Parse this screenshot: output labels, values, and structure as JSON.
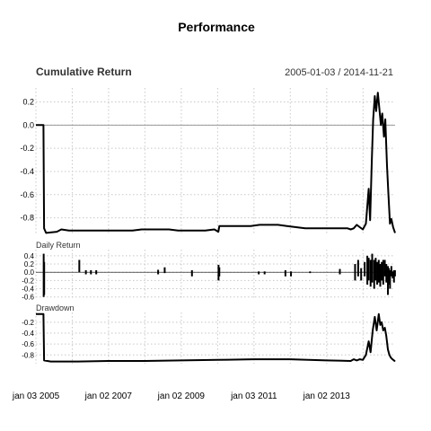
{
  "chart_data": {
    "type": "line",
    "title": "Performance",
    "date_range": "2005-01-03 / 2014-11-21",
    "x_ticks": [
      "jan 03 2005",
      "jan 02 2007",
      "jan 02 2009",
      "jan 03 2011",
      "jan 02 2013"
    ],
    "x_tick_dates": [
      "2005-01-03",
      "2007-01-02",
      "2009-01-02",
      "2011-01-03",
      "2013-01-02"
    ],
    "x_start": "2005-01-03",
    "x_end": "2014-11-21",
    "grid": true,
    "panels": [
      {
        "name": "Cumulative Return",
        "type": "line",
        "ylim": [
          -0.95,
          0.32
        ],
        "y_ticks": [
          "0.2",
          "0.0",
          "-0.2",
          "-0.4",
          "-0.6",
          "-0.8"
        ],
        "y_tick_values": [
          0.2,
          0.0,
          -0.2,
          -0.4,
          -0.6,
          -0.8
        ],
        "reference_line": 0.0,
        "x": [
          "2005-01-03",
          "2005-03-20",
          "2005-03-26",
          "2005-04-15",
          "2005-08-01",
          "2005-09-15",
          "2005-12-01",
          "2006-03-01",
          "2006-06-01",
          "2006-09-01",
          "2006-12-01",
          "2007-03-01",
          "2007-06-01",
          "2007-09-01",
          "2007-12-01",
          "2008-03-01",
          "2008-06-01",
          "2008-09-01",
          "2008-12-01",
          "2009-03-01",
          "2009-06-01",
          "2009-09-01",
          "2009-12-01",
          "2010-01-10",
          "2010-01-20",
          "2010-03-01",
          "2010-06-01",
          "2010-09-01",
          "2010-12-01",
          "2011-03-01",
          "2011-06-01",
          "2011-09-01",
          "2011-12-01",
          "2012-03-01",
          "2012-06-01",
          "2012-09-01",
          "2012-12-01",
          "2013-03-01",
          "2013-06-01",
          "2013-08-01",
          "2013-09-01",
          "2013-10-01",
          "2013-11-01",
          "2013-12-01",
          "2014-01-01",
          "2014-02-01",
          "2014-03-01",
          "2014-03-15",
          "2014-04-01",
          "2014-04-15",
          "2014-05-01",
          "2014-05-15",
          "2014-06-01",
          "2014-06-15",
          "2014-07-01",
          "2014-07-15",
          "2014-08-01",
          "2014-08-15",
          "2014-09-01",
          "2014-09-15",
          "2014-10-01",
          "2014-10-15",
          "2014-11-01",
          "2014-11-21"
        ],
        "values": [
          0.0,
          0.0,
          -0.89,
          -0.93,
          -0.92,
          -0.9,
          -0.91,
          -0.91,
          -0.91,
          -0.91,
          -0.91,
          -0.91,
          -0.91,
          -0.91,
          -0.9,
          -0.9,
          -0.9,
          -0.9,
          -0.91,
          -0.91,
          -0.91,
          -0.91,
          -0.9,
          -0.92,
          -0.87,
          -0.87,
          -0.87,
          -0.87,
          -0.87,
          -0.86,
          -0.86,
          -0.86,
          -0.87,
          -0.88,
          -0.89,
          -0.89,
          -0.89,
          -0.89,
          -0.89,
          -0.89,
          -0.9,
          -0.89,
          -0.86,
          -0.88,
          -0.9,
          -0.85,
          -0.55,
          -0.82,
          -0.3,
          0.05,
          0.25,
          0.12,
          0.28,
          0.15,
          0.0,
          0.1,
          -0.1,
          0.05,
          -0.35,
          -0.6,
          -0.85,
          -0.81,
          -0.88,
          -0.93
        ]
      },
      {
        "name": "Daily Return",
        "type": "bar",
        "ylim": [
          -0.65,
          0.55
        ],
        "y_ticks": [
          "0.4",
          "0.2",
          "0.0",
          "-0.2",
          "-0.4",
          "-0.6"
        ],
        "y_tick_values": [
          0.4,
          0.2,
          0.0,
          -0.2,
          -0.4,
          -0.6
        ],
        "spikes": [
          {
            "x": "2005-03-22",
            "lo": -0.6,
            "hi": 0.45
          },
          {
            "x": "2005-03-27",
            "lo": -0.55,
            "hi": 0.25
          },
          {
            "x": "2006-03-15",
            "lo": 0.0,
            "hi": 0.3
          },
          {
            "x": "2006-05-20",
            "lo": -0.05,
            "hi": 0.05
          },
          {
            "x": "2006-07-10",
            "lo": -0.05,
            "hi": 0.05
          },
          {
            "x": "2006-09-01",
            "lo": -0.05,
            "hi": 0.05
          },
          {
            "x": "2008-05-15",
            "lo": -0.05,
            "hi": 0.06
          },
          {
            "x": "2008-07-20",
            "lo": -0.02,
            "hi": 0.12
          },
          {
            "x": "2009-04-20",
            "lo": -0.1,
            "hi": 0.05
          },
          {
            "x": "2010-01-12",
            "lo": -0.2,
            "hi": 0.18
          },
          {
            "x": "2010-01-20",
            "lo": -0.1,
            "hi": 0.12
          },
          {
            "x": "2011-02-20",
            "lo": -0.05,
            "hi": 0.02
          },
          {
            "x": "2011-04-20",
            "lo": -0.05,
            "hi": 0.02
          },
          {
            "x": "2011-11-15",
            "lo": -0.1,
            "hi": 0.05
          },
          {
            "x": "2012-01-10",
            "lo": -0.1,
            "hi": 0.02
          },
          {
            "x": "2012-07-20",
            "lo": -0.02,
            "hi": 0.02
          },
          {
            "x": "2013-05-15",
            "lo": -0.05,
            "hi": 0.08
          },
          {
            "x": "2013-10-15",
            "lo": -0.2,
            "hi": 0.2
          },
          {
            "x": "2013-11-15",
            "lo": -0.1,
            "hi": 0.3
          },
          {
            "x": "2013-12-15",
            "lo": -0.2,
            "hi": 0.1
          },
          {
            "x": "2014-01-20",
            "lo": -0.1,
            "hi": 0.25
          },
          {
            "x": "2014-02-15",
            "lo": -0.3,
            "hi": 0.4
          },
          {
            "x": "2014-03-01",
            "lo": -0.2,
            "hi": 0.35
          },
          {
            "x": "2014-03-20",
            "lo": -0.35,
            "hi": 0.3
          },
          {
            "x": "2014-04-05",
            "lo": -0.25,
            "hi": 0.45
          },
          {
            "x": "2014-04-25",
            "lo": -0.4,
            "hi": 0.3
          },
          {
            "x": "2014-05-10",
            "lo": -0.2,
            "hi": 0.35
          },
          {
            "x": "2014-05-25",
            "lo": -0.3,
            "hi": 0.25
          },
          {
            "x": "2014-06-10",
            "lo": -0.25,
            "hi": 0.3
          },
          {
            "x": "2014-06-25",
            "lo": -0.35,
            "hi": 0.2
          },
          {
            "x": "2014-07-10",
            "lo": -0.2,
            "hi": 0.25
          },
          {
            "x": "2014-07-25",
            "lo": -0.3,
            "hi": 0.3
          },
          {
            "x": "2014-08-10",
            "lo": -0.1,
            "hi": 0.3
          },
          {
            "x": "2014-08-25",
            "lo": -0.25,
            "hi": 0.2
          },
          {
            "x": "2014-09-10",
            "lo": -0.55,
            "hi": 0.15
          },
          {
            "x": "2014-09-20",
            "lo": -0.3,
            "hi": 0.1
          },
          {
            "x": "2014-10-01",
            "lo": -0.4,
            "hi": 0.05
          },
          {
            "x": "2014-10-15",
            "lo": -0.1,
            "hi": 0.15
          },
          {
            "x": "2014-10-28",
            "lo": -0.15,
            "hi": 0.02
          },
          {
            "x": "2014-11-10",
            "lo": -0.25,
            "hi": 0.05
          },
          {
            "x": "2014-11-20",
            "lo": -0.1,
            "hi": 0.05
          }
        ]
      },
      {
        "name": "Drawdown",
        "type": "line",
        "ylim": [
          -0.96,
          -0.02
        ],
        "y_ticks": [
          "-0.2",
          "-0.4",
          "-0.6",
          "-0.8"
        ],
        "y_tick_values": [
          -0.2,
          -0.4,
          -0.6,
          -0.8
        ],
        "x": [
          "2005-01-03",
          "2005-03-20",
          "2005-03-26",
          "2005-06-01",
          "2006-03-01",
          "2007-01-01",
          "2008-01-01",
          "2009-01-01",
          "2010-01-01",
          "2011-01-01",
          "2012-01-01",
          "2013-01-01",
          "2013-09-01",
          "2013-10-01",
          "2013-11-01",
          "2013-12-01",
          "2014-01-01",
          "2014-02-01",
          "2014-03-01",
          "2014-03-20",
          "2014-04-10",
          "2014-05-01",
          "2014-05-20",
          "2014-06-10",
          "2014-06-25",
          "2014-07-10",
          "2014-07-25",
          "2014-08-10",
          "2014-08-25",
          "2014-09-10",
          "2014-09-25",
          "2014-10-10",
          "2014-10-25",
          "2014-11-10",
          "2014-11-21"
        ],
        "values": [
          -0.05,
          -0.05,
          -0.9,
          -0.92,
          -0.92,
          -0.91,
          -0.91,
          -0.9,
          -0.89,
          -0.88,
          -0.88,
          -0.9,
          -0.91,
          -0.88,
          -0.9,
          -0.88,
          -0.89,
          -0.8,
          -0.55,
          -0.75,
          -0.35,
          -0.1,
          -0.35,
          -0.05,
          -0.25,
          -0.2,
          -0.35,
          -0.3,
          -0.45,
          -0.7,
          -0.8,
          -0.85,
          -0.88,
          -0.9,
          -0.92
        ]
      }
    ]
  }
}
